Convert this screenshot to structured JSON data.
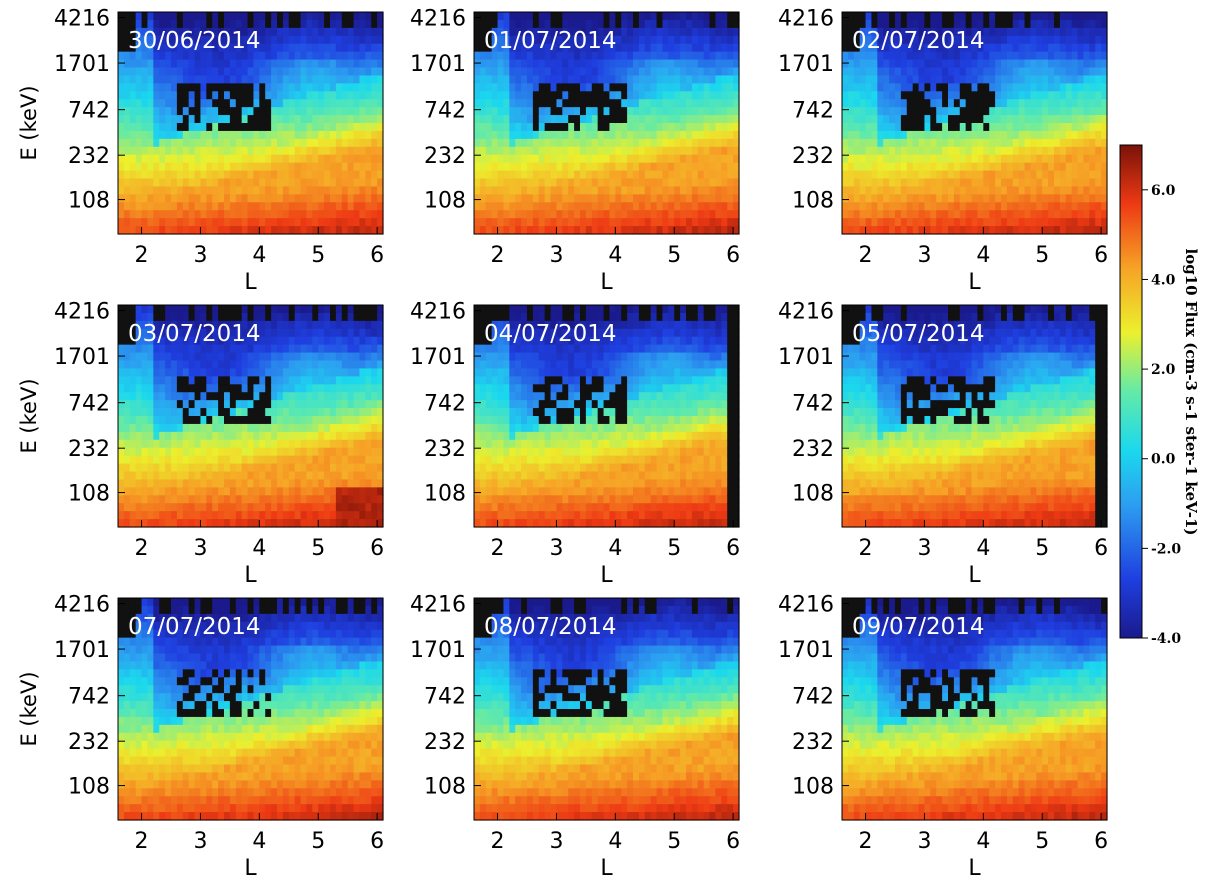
{
  "chart_data": {
    "type": "heatmap",
    "panels": [
      {
        "date": "30/06/2014"
      },
      {
        "date": "01/07/2014"
      },
      {
        "date": "02/07/2014"
      },
      {
        "date": "03/07/2014"
      },
      {
        "date": "04/07/2014"
      },
      {
        "date": "05/07/2014"
      },
      {
        "date": "07/07/2014"
      },
      {
        "date": "08/07/2014"
      },
      {
        "date": "09/07/2014"
      }
    ],
    "xlabel": "L",
    "ylabel": "E (keV)",
    "x_ticks": [
      "2",
      "3",
      "4",
      "5",
      "6"
    ],
    "xlim": [
      1.6,
      6.1
    ],
    "y_ticks": [
      "4216",
      "1701",
      "742",
      "232",
      "108"
    ],
    "colorbar": {
      "label": "log10 Flux (cm-3 s-1 ster-1 keV-1)",
      "ticks": [
        "6.0",
        "4.0",
        "2.0",
        "0.0",
        "-2.0",
        "-4.0"
      ],
      "range": [
        -4.0,
        7.0
      ]
    }
  }
}
